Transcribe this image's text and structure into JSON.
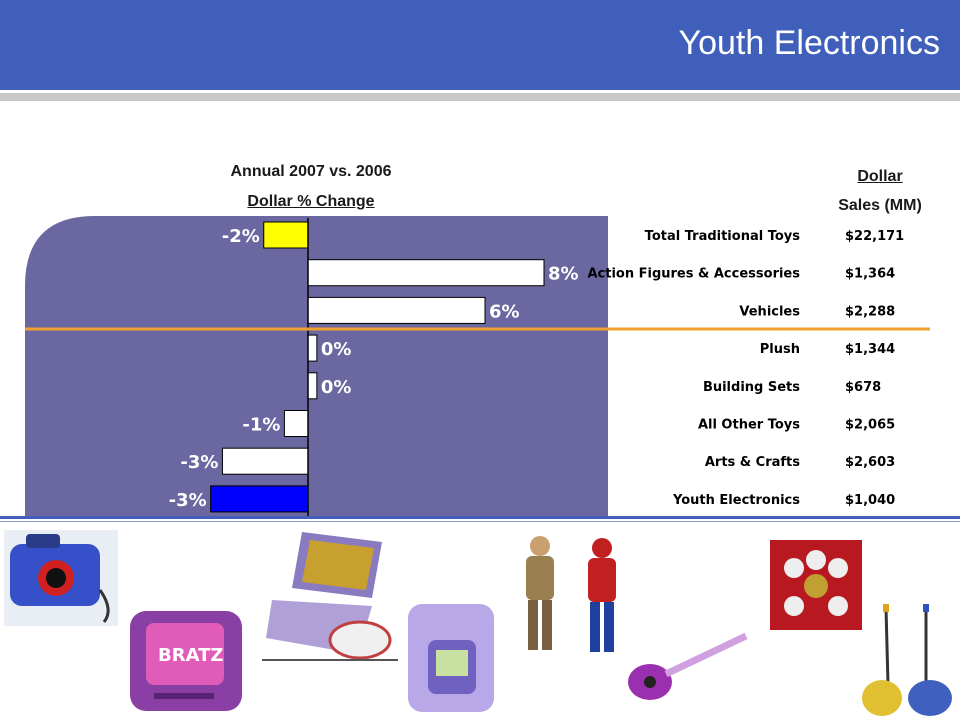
{
  "page": {
    "title": "Youth Electronics"
  },
  "headers": {
    "chart_title_line1": "Annual 2007 vs. 2006",
    "chart_title_line2": "Dollar % Change",
    "sales_header_line1": "Dollar",
    "sales_header_line2": "Sales (MM)"
  },
  "chart_data": {
    "type": "bar",
    "orientation": "horizontal",
    "title": "Annual 2007 vs. 2006 Dollar % Change",
    "categories": [
      "Total Traditional Toys",
      "Action Figures & Accessories",
      "Vehicles",
      "Plush",
      "Building Sets",
      "All Other Toys",
      "Arts & Crafts",
      "Youth Electronics"
    ],
    "values": [
      -1.5,
      8,
      6,
      0.3,
      0.3,
      -0.8,
      -2.9,
      -3.3
    ],
    "data_labels": [
      "-2%",
      "8%",
      "6%",
      "0%",
      "0%",
      "-1%",
      "-3%",
      "-3%"
    ],
    "sales_mm": [
      "$22,171",
      "$1,364",
      "$2,288",
      "$1,344",
      "$678",
      "$2,065",
      "$2,603",
      "$1,040"
    ],
    "xlim": [
      -9,
      10
    ],
    "colors": {
      "panel": "#6b67a0",
      "default_bar": "#ffffff",
      "highlight_total": "#ffff00",
      "highlight_focus": "#0000ff",
      "divider": "#f0a030"
    }
  },
  "theme": {
    "header_bg": "#3f5fba",
    "stripe": "#c8c8c8"
  }
}
